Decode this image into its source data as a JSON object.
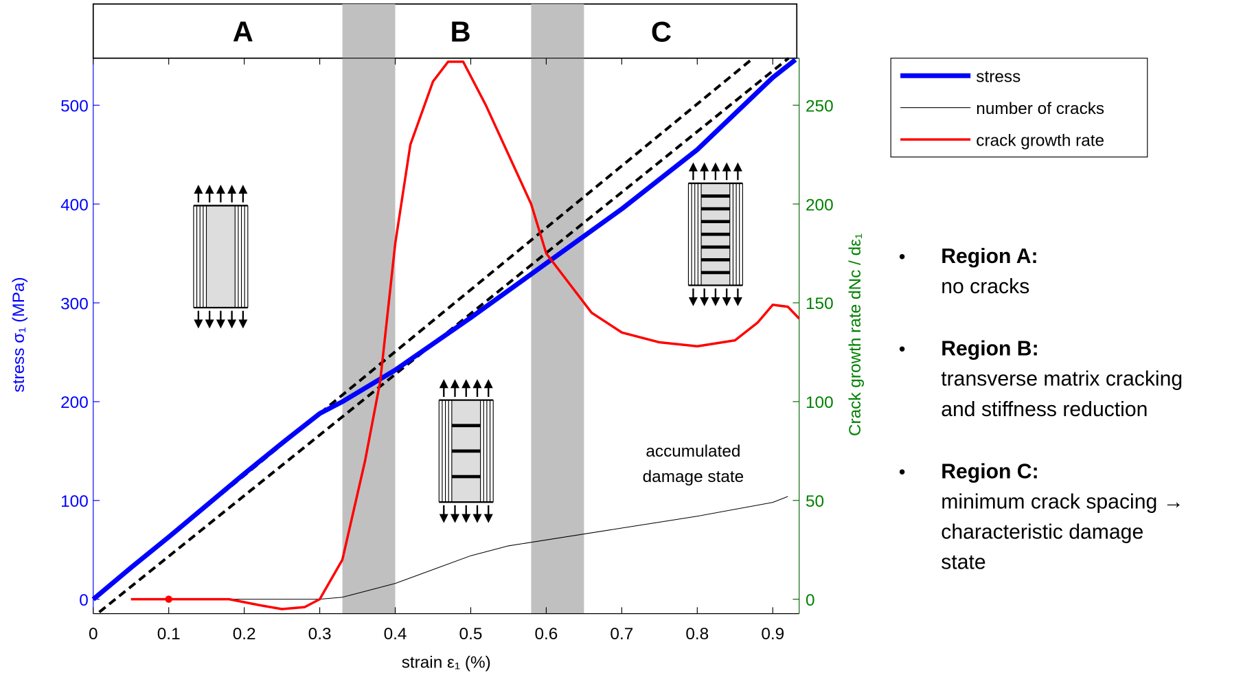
{
  "chart_data": {
    "type": "line",
    "xlabel": "strain ε₁ (%)",
    "ylabel": "stress σ₁ (MPa)",
    "y2label": "Crack growth rate dNc / dε₁",
    "xlim": [
      0,
      0.935
    ],
    "xticks": [
      0,
      0.1,
      0.2,
      0.3,
      0.4,
      0.5,
      0.6,
      0.7,
      0.8,
      0.9
    ],
    "ylim": [
      -14.5,
      547.6
    ],
    "yticks": [
      0,
      100,
      200,
      300,
      400,
      500
    ],
    "y2lim": [
      -7.3,
      273.8
    ],
    "y2ticks": [
      0,
      50,
      100,
      150,
      200,
      250
    ],
    "region_labels": [
      "A",
      "B",
      "C"
    ],
    "shaded_bands": [
      [
        0.33,
        0.4
      ],
      [
        0.58,
        0.65
      ]
    ],
    "series": [
      {
        "name": "stress",
        "color": "#0000ff",
        "axis": "y",
        "x": [
          0,
          0.05,
          0.1,
          0.15,
          0.2,
          0.25,
          0.3,
          0.33,
          0.4,
          0.5,
          0.6,
          0.7,
          0.8,
          0.9,
          0.93
        ],
        "values": [
          0,
          32,
          63,
          95,
          127,
          158,
          188,
          200,
          232,
          285,
          340,
          395,
          455,
          528,
          546
        ]
      },
      {
        "name": "number of cracks",
        "color": "#000000",
        "axis": "y2",
        "x": [
          0.05,
          0.2,
          0.3,
          0.33,
          0.4,
          0.45,
          0.5,
          0.55,
          0.6,
          0.7,
          0.8,
          0.9,
          0.92
        ],
        "values": [
          0,
          0,
          0,
          1,
          8,
          15,
          22,
          27,
          30,
          36,
          42,
          49,
          52
        ]
      },
      {
        "name": "crack growth rate",
        "color": "#ff0000",
        "axis": "y2",
        "x": [
          0.05,
          0.18,
          0.22,
          0.25,
          0.28,
          0.3,
          0.33,
          0.36,
          0.38,
          0.4,
          0.42,
          0.45,
          0.47,
          0.49,
          0.52,
          0.55,
          0.58,
          0.6,
          0.63,
          0.66,
          0.7,
          0.75,
          0.8,
          0.85,
          0.88,
          0.9,
          0.92,
          0.935
        ],
        "values": [
          0,
          0,
          -3,
          -5,
          -4,
          0,
          20,
          70,
          110,
          180,
          230,
          262,
          272,
          272,
          250,
          225,
          200,
          175,
          160,
          145,
          135,
          130,
          128,
          131,
          140,
          149,
          148,
          142
        ]
      }
    ],
    "reference_lines": [
      {
        "x": [
          0,
          0.874
        ],
        "values": [
          0,
          547.6
        ]
      },
      {
        "x": [
          0.008,
          0.921
        ],
        "values": [
          -13,
          547.6
        ]
      }
    ],
    "highlight_point": {
      "x": 0.1,
      "value": 0
    },
    "annotation": [
      "accumulated",
      "damage state"
    ],
    "bullets": [
      {
        "title": "Region A:",
        "lines": [
          "no cracks"
        ]
      },
      {
        "title": "Region B:",
        "lines": [
          "transverse matrix cracking",
          "and stiffness reduction"
        ]
      },
      {
        "title": "Region C:",
        "lines": [
          "minimum crack spacing →",
          "characteristic damage",
          "state"
        ]
      }
    ]
  }
}
